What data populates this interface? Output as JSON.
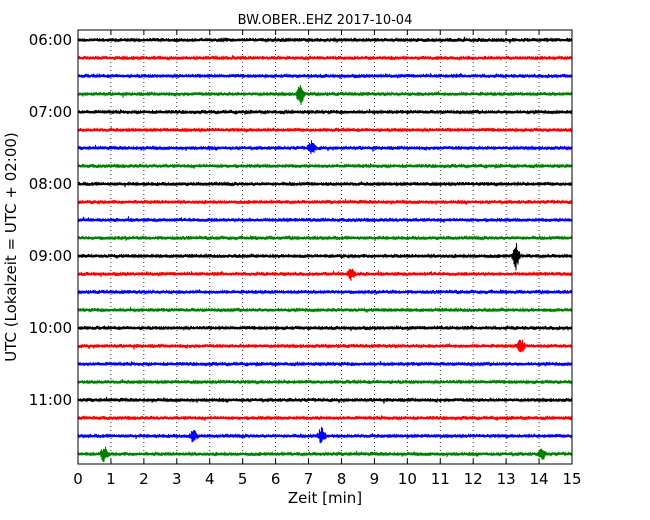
{
  "chart_data": {
    "type": "line",
    "title": "BW.OBER..EHZ 2017-10-04",
    "xlabel": "Zeit  [min]",
    "ylabel": "UTC (Lokalzeit = UTC + 02:00)",
    "xlim": [
      0,
      15
    ],
    "xticks": [
      0,
      1,
      2,
      3,
      4,
      5,
      6,
      7,
      8,
      9,
      10,
      11,
      12,
      13,
      14,
      15
    ],
    "xtick_labels": [
      "0",
      "1",
      "2",
      "3",
      "4",
      "5",
      "6",
      "7",
      "8",
      "9",
      "10",
      "11",
      "12",
      "13",
      "14",
      "15"
    ],
    "ytick_labels": [
      "06:00",
      "07:00",
      "08:00",
      "09:00",
      "10:00",
      "11:00"
    ],
    "ytick_rows": [
      0,
      4,
      8,
      12,
      16,
      20
    ],
    "grid": "vertical dotted",
    "trace_count": 24,
    "trace_minutes": 15,
    "first_trace_start": "06:00",
    "colors": [
      "#000000",
      "#ff0000",
      "#0000ff",
      "#008000"
    ],
    "notable_events": [
      {
        "row": 3,
        "minute": 6.75,
        "amplitude": 2.2
      },
      {
        "row": 6,
        "minute": 7.1,
        "amplitude": 1.4
      },
      {
        "row": 12,
        "minute": 13.3,
        "amplitude": 2.6
      },
      {
        "row": 13,
        "minute": 8.3,
        "amplitude": 1.2
      },
      {
        "row": 17,
        "minute": 13.45,
        "amplitude": 1.6
      },
      {
        "row": 22,
        "minute": 7.4,
        "amplitude": 1.8
      },
      {
        "row": 22,
        "minute": 3.5,
        "amplitude": 1.3
      },
      {
        "row": 23,
        "minute": 0.8,
        "amplitude": 1.6
      },
      {
        "row": 23,
        "minute": 14.1,
        "amplitude": 1.1
      }
    ]
  }
}
